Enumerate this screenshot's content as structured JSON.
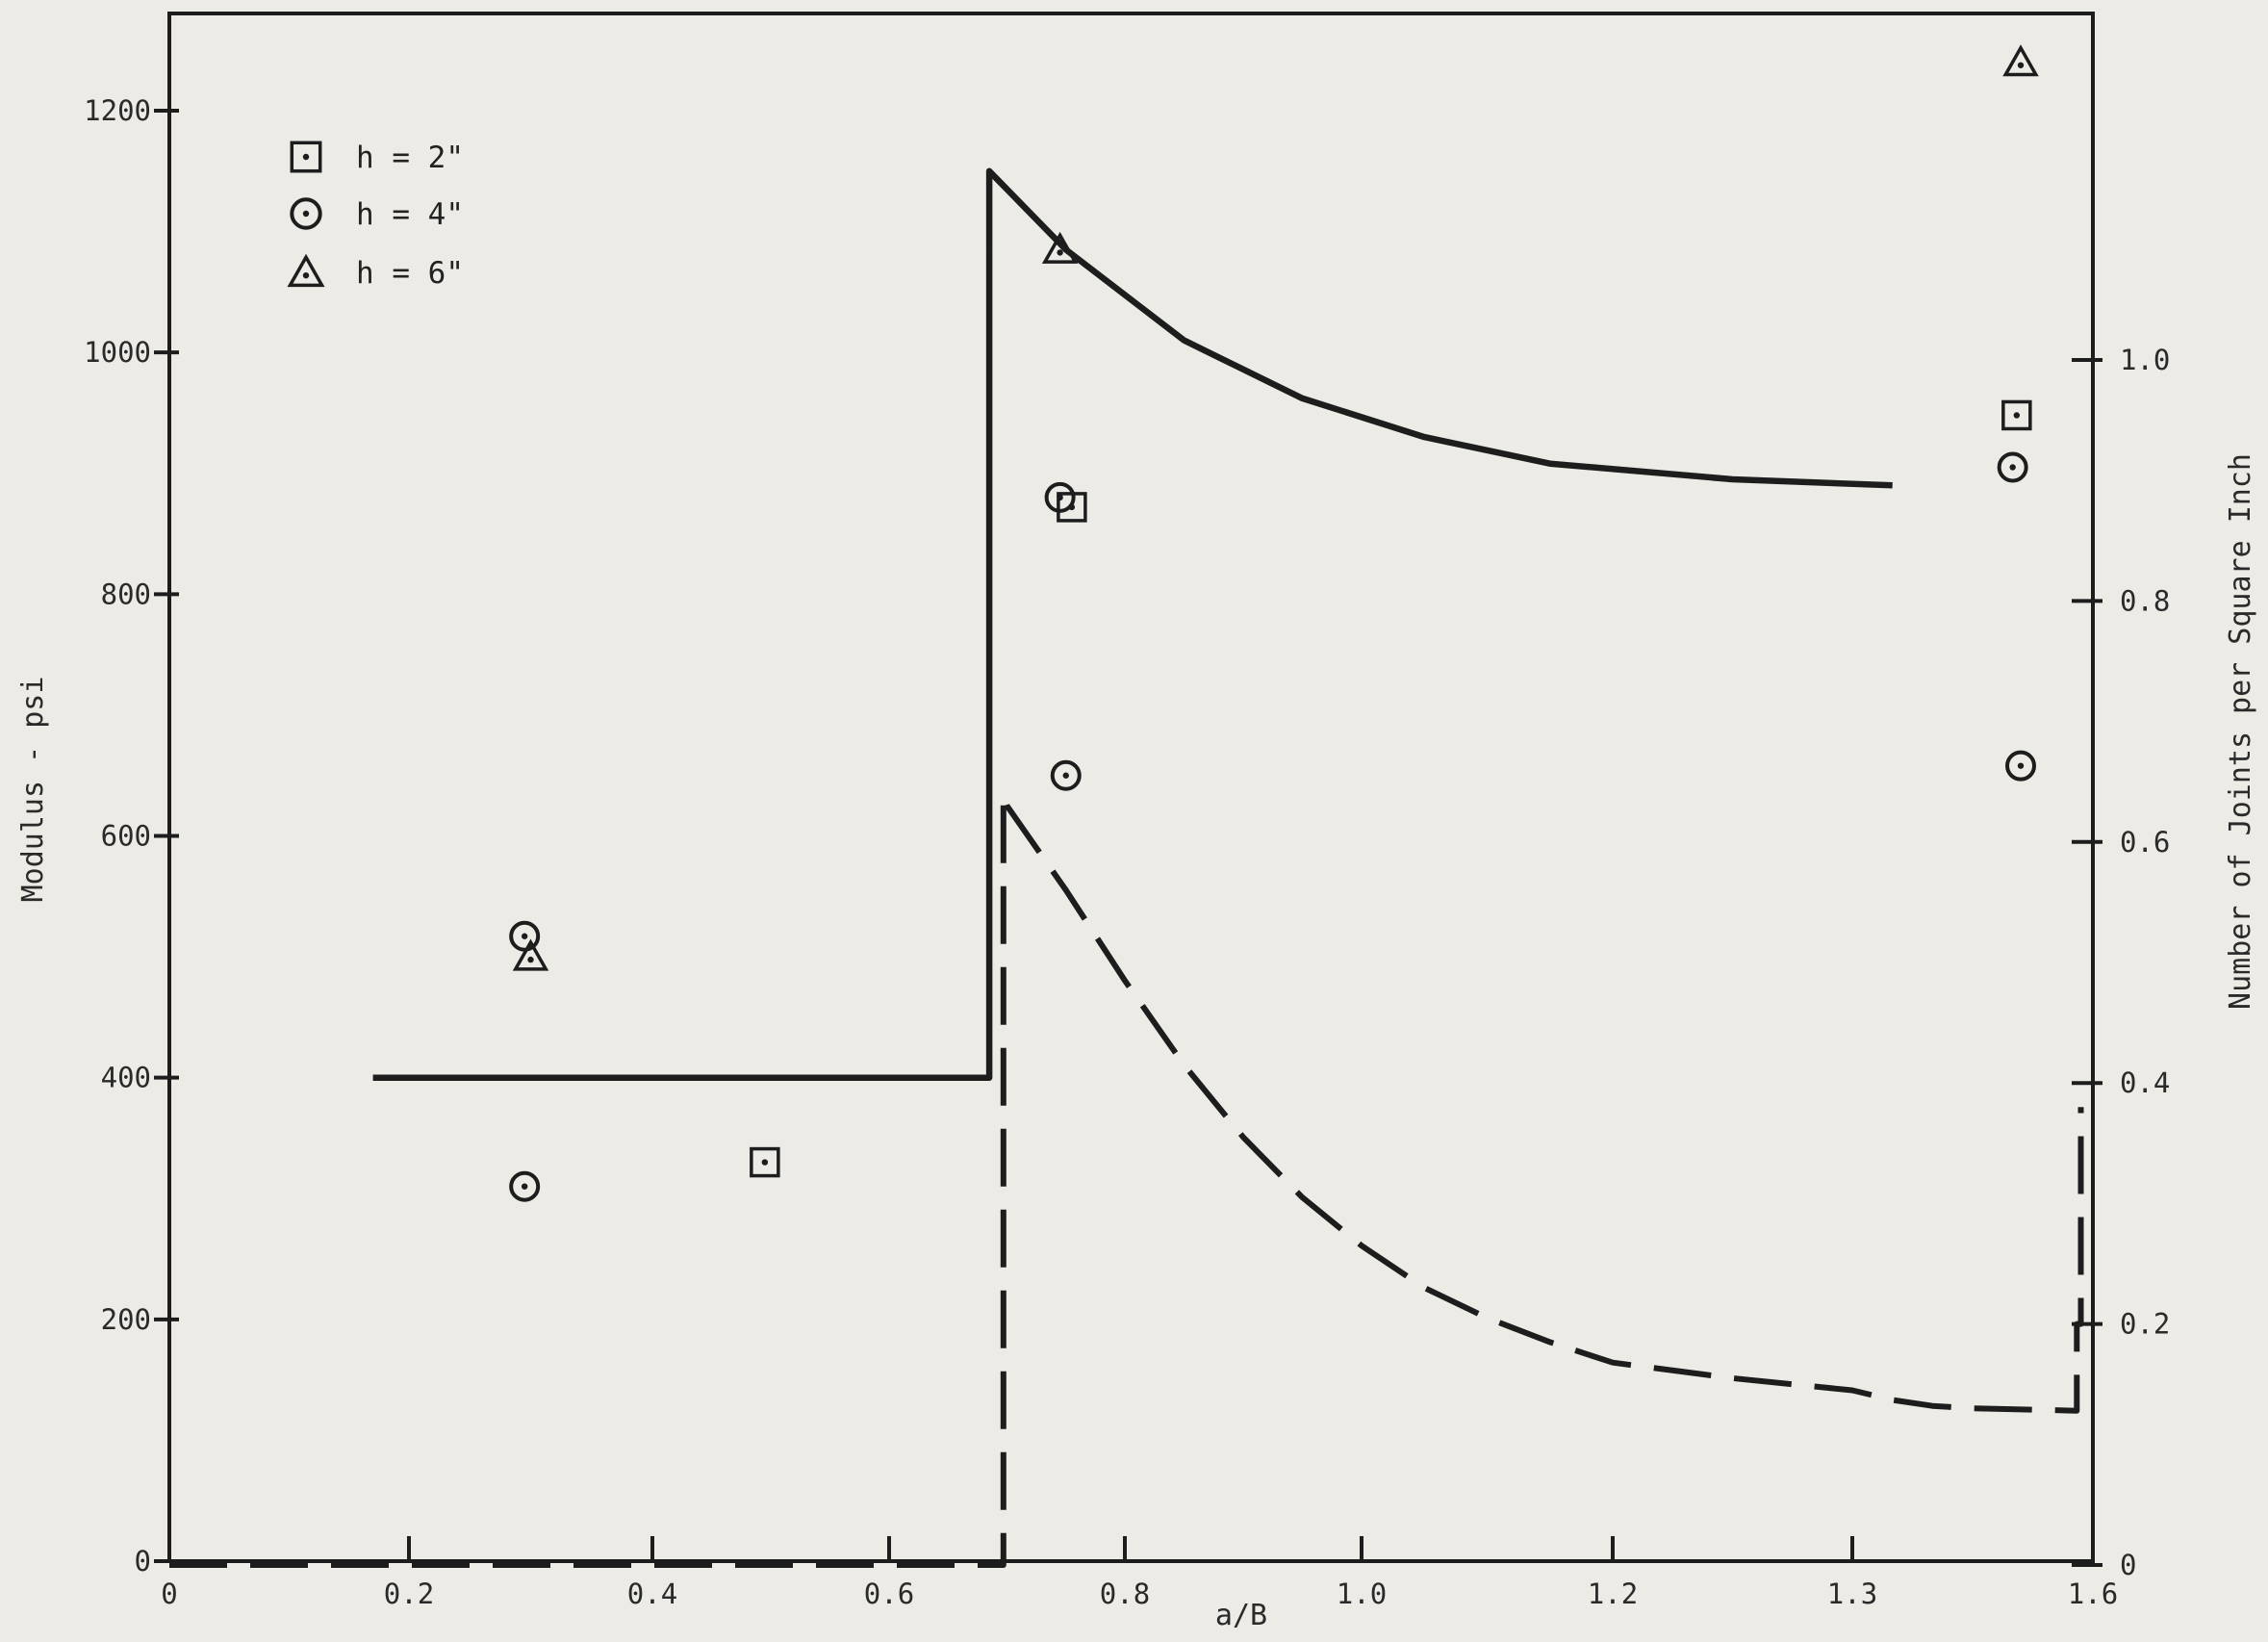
{
  "chart_data": {
    "type": "line",
    "xlabel": "a/B",
    "ylabel_left": "Modulus - psi",
    "ylabel_right": "Number of Joints per Square Inch",
    "x_ticks": [
      0,
      0.2,
      0.4,
      0.6,
      0.8,
      1.0,
      1.2,
      1.3,
      1.6
    ],
    "x_tick_labels": [
      "0",
      "0.2",
      "0.4",
      "0.6",
      "0.8",
      "1.0",
      "1.2",
      "1.3",
      "1.6"
    ],
    "y_left_ticks": [
      0,
      200,
      400,
      600,
      800,
      1000,
      1200
    ],
    "y_left_tick_labels": [
      "0",
      "200",
      "400",
      "600",
      "800",
      "1000",
      "1200"
    ],
    "y_right_ticks": [
      0,
      0.2,
      0.4,
      0.6,
      0.8,
      1.0
    ],
    "y_right_tick_labels": [
      "0",
      "0.2",
      "0.4",
      "0.6",
      "0.8",
      "1.0"
    ],
    "xlim": [
      0,
      1.6
    ],
    "ylim_left": [
      0,
      1200
    ],
    "ylim_right": [
      0,
      1.2
    ],
    "legend": [
      {
        "marker": "square-dot",
        "label": "h = 2\""
      },
      {
        "marker": "circle-dot",
        "label": "h = 4\""
      },
      {
        "marker": "triangle-dot",
        "label": "h = 6\""
      }
    ],
    "series": [
      {
        "style": "solid",
        "axis": "left",
        "points": [
          [
            0.17,
            400
          ],
          [
            0.685,
            400
          ],
          [
            0.685,
            1150
          ],
          [
            0.75,
            1085
          ],
          [
            0.85,
            1010
          ],
          [
            0.95,
            962
          ],
          [
            1.05,
            930
          ],
          [
            1.15,
            908
          ],
          [
            1.25,
            895
          ],
          [
            1.35,
            890
          ]
        ]
      },
      {
        "style": "dashed",
        "axis": "right",
        "points": [
          [
            0,
            0
          ],
          [
            0.697,
            0
          ],
          [
            0.697,
            0.64
          ],
          [
            0.7,
            0.63
          ],
          [
            0.75,
            0.56
          ],
          [
            0.8,
            0.485
          ],
          [
            0.85,
            0.415
          ],
          [
            0.9,
            0.355
          ],
          [
            0.95,
            0.305
          ],
          [
            1.0,
            0.265
          ],
          [
            1.05,
            0.23
          ],
          [
            1.1,
            0.205
          ],
          [
            1.15,
            0.185
          ],
          [
            1.2,
            0.168
          ],
          [
            1.25,
            0.155
          ],
          [
            1.3,
            0.145
          ],
          [
            1.35,
            0.137
          ],
          [
            1.4,
            0.132
          ],
          [
            1.45,
            0.13
          ],
          [
            1.58,
            0.128
          ],
          [
            1.58,
            0.2
          ],
          [
            1.585,
            0.2
          ],
          [
            1.585,
            0.38
          ]
        ]
      }
    ],
    "scatter": [
      {
        "marker": "square-dot",
        "points": [
          [
            0.495,
            330
          ],
          [
            0.755,
            872
          ],
          [
            1.505,
            948
          ]
        ]
      },
      {
        "marker": "circle-dot",
        "points": [
          [
            0.295,
            310
          ],
          [
            0.295,
            517
          ],
          [
            0.745,
            880
          ],
          [
            0.75,
            650
          ],
          [
            1.5,
            905
          ],
          [
            1.51,
            658
          ]
        ]
      },
      {
        "marker": "triangle-dot",
        "points": [
          [
            0.3,
            500
          ],
          [
            0.745,
            1085
          ],
          [
            1.51,
            1240
          ]
        ]
      }
    ]
  }
}
